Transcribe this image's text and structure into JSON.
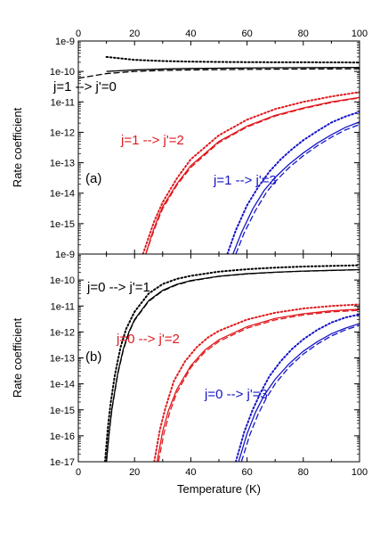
{
  "chart_data": [
    {
      "type": "line",
      "panel_label": "(a)",
      "xlabel": "",
      "ylabel": "Rate coefficient",
      "xlim": [
        0,
        100
      ],
      "ylim_log10": [
        -16,
        -9
      ],
      "x_ticks": [
        "0",
        "20",
        "40",
        "60",
        "80",
        "100"
      ],
      "x_ticks_top": [
        "0",
        "20",
        "40",
        "60",
        "80",
        "100"
      ],
      "y_ticks": [
        "1e-9",
        "1e-10",
        "1e-11",
        "1e-12",
        "1e-13",
        "1e-14",
        "1e-15"
      ],
      "log_scale": "y",
      "grid": false,
      "colors": {
        "black": "#000000",
        "red": "#e0191e",
        "blue": "#1616c8"
      },
      "annotations": [
        {
          "text": "j=1 --> j'=0",
          "color": "#000000"
        },
        {
          "text": "j=1 --> j'=2",
          "color": "#e0191e"
        },
        {
          "text": "j=1 --> j'=3",
          "color": "#1616c8"
        }
      ],
      "series": [
        {
          "transition": "j=1 --> j'=0",
          "color": "#000000",
          "style": "solid",
          "x": [
            10,
            20,
            30,
            40,
            50,
            60,
            70,
            80,
            90,
            100
          ],
          "y": [
            1e-10,
            1.12e-10,
            1.2e-10,
            1.25e-10,
            1.28e-10,
            1.3e-10,
            1.32e-10,
            1.33e-10,
            1.34e-10,
            1.35e-10
          ]
        },
        {
          "transition": "j=1 --> j'=0",
          "color": "#000000",
          "style": "dashed",
          "x": [
            0,
            10,
            20,
            30,
            40,
            50,
            60,
            70,
            80,
            90,
            100
          ],
          "y": [
            6e-11,
            8.5e-11,
            1e-10,
            1.08e-10,
            1.12e-10,
            1.15e-10,
            1.17e-10,
            1.19e-10,
            1.2e-10,
            1.21e-10,
            1.22e-10
          ]
        },
        {
          "transition": "j=1 --> j'=0",
          "color": "#000000",
          "style": "dotted",
          "x": [
            10,
            20,
            30,
            40,
            50,
            60,
            70,
            80,
            90,
            100
          ],
          "y": [
            3e-10,
            2.4e-10,
            2.2e-10,
            2.1e-10,
            2.05e-10,
            2.02e-10,
            2e-10,
            2e-10,
            1.98e-10,
            1.97e-10
          ]
        },
        {
          "transition": "j=1 --> j'=2",
          "color": "#e0191e",
          "style": "solid",
          "x": [
            24,
            26,
            28,
            30,
            35,
            40,
            50,
            60,
            70,
            80,
            90,
            100
          ],
          "y": [
            1e-16,
            4e-16,
            1.3e-15,
            3.6e-15,
            2e-14,
            8e-14,
            5e-13,
            1.6e-12,
            3.6e-12,
            6.3e-12,
            1e-11,
            1.4e-11
          ]
        },
        {
          "transition": "j=1 --> j'=2",
          "color": "#e0191e",
          "style": "dashed",
          "x": [
            24,
            26,
            28,
            30,
            35,
            40,
            50,
            60,
            70,
            80,
            90,
            100
          ],
          "y": [
            1e-16,
            3.5e-16,
            1.1e-15,
            3.1e-15,
            1.8e-14,
            7e-14,
            4.6e-13,
            1.5e-12,
            3.4e-12,
            6e-12,
            9.5e-12,
            1.35e-11
          ]
        },
        {
          "transition": "j=1 --> j'=2",
          "color": "#e0191e",
          "style": "dotted",
          "x": [
            23,
            25,
            27,
            30,
            35,
            40,
            50,
            60,
            70,
            80,
            90,
            100
          ],
          "y": [
            1e-16,
            3.5e-16,
            1.2e-15,
            5e-15,
            3e-14,
            1.3e-13,
            8e-13,
            2.6e-12,
            5.8e-12,
            1e-11,
            1.5e-11,
            2.1e-11
          ]
        },
        {
          "transition": "j=1 --> j'=3",
          "color": "#1616c8",
          "style": "solid",
          "x": [
            55,
            58,
            62,
            66,
            70,
            75,
            80,
            85,
            90,
            95,
            100
          ],
          "y": [
            1e-16,
            5e-16,
            3e-15,
            1.2e-14,
            3.3e-14,
            9e-14,
            2.1e-13,
            4.4e-13,
            8.3e-13,
            1.45e-12,
            2.2e-12
          ]
        },
        {
          "transition": "j=1 --> j'=3",
          "color": "#1616c8",
          "style": "dashed",
          "x": [
            56,
            59,
            63,
            67,
            70,
            75,
            80,
            85,
            90,
            95,
            100
          ],
          "y": [
            1e-16,
            5e-16,
            2.7e-15,
            1.1e-14,
            2.4e-14,
            7e-14,
            1.7e-13,
            3.6e-13,
            6.9e-13,
            1.2e-12,
            1.8e-12
          ]
        },
        {
          "transition": "j=1 --> j'=3",
          "color": "#1616c8",
          "style": "dotted",
          "x": [
            53,
            56,
            60,
            64,
            68,
            72,
            76,
            80,
            85,
            90,
            95,
            100
          ],
          "y": [
            1e-16,
            6e-16,
            4e-15,
            1.6e-14,
            5.2e-14,
            1.3e-13,
            2.8e-13,
            5.5e-13,
            1.1e-12,
            2.1e-12,
            3.3e-12,
            4.7e-12
          ]
        }
      ]
    },
    {
      "type": "line",
      "panel_label": "(b)",
      "xlabel": "Temperature (K)",
      "ylabel": "Rate coefficient",
      "xlim": [
        0,
        100
      ],
      "ylim_log10": [
        -17,
        -9
      ],
      "x_ticks": [
        "0",
        "20",
        "40",
        "60",
        "80",
        "100"
      ],
      "y_ticks": [
        "1e-9",
        "1e-10",
        "1e-11",
        "1e-12",
        "1e-13",
        "1e-14",
        "1e-15",
        "1e-16",
        "1e-17"
      ],
      "log_scale": "y",
      "grid": false,
      "colors": {
        "black": "#000000",
        "red": "#e0191e",
        "blue": "#1616c8"
      },
      "annotations": [
        {
          "text": "j=0 --> j'=1",
          "color": "#000000"
        },
        {
          "text": "j=0 --> j'=2",
          "color": "#e0191e"
        },
        {
          "text": "j=0 --> j'=3",
          "color": "#1616c8"
        }
      ],
      "series": [
        {
          "transition": "j=0 --> j'=1",
          "color": "#000000",
          "style": "solid",
          "x": [
            10,
            11,
            12,
            14,
            16,
            18,
            20,
            25,
            30,
            35,
            40,
            50,
            60,
            70,
            80,
            90,
            100
          ],
          "y": [
            1e-17,
            1.5e-16,
            1.2e-15,
            2.5e-14,
            2.2e-13,
            1e-12,
            3e-12,
            1.6e-11,
            4e-11,
            6.8e-11,
            9.5e-11,
            1.4e-10,
            1.75e-10,
            2e-10,
            2.2e-10,
            2.35e-10,
            2.5e-10
          ]
        },
        {
          "transition": "j=0 --> j'=1",
          "color": "#000000",
          "style": "dashed",
          "x": [
            10,
            11,
            12,
            14,
            16,
            18,
            20,
            25,
            30,
            35,
            40,
            50,
            60,
            70,
            80,
            90,
            100
          ],
          "y": [
            1e-17,
            1.4e-16,
            1.1e-15,
            2.3e-14,
            2e-13,
            9.5e-13,
            2.8e-12,
            1.5e-11,
            3.8e-11,
            6.5e-11,
            9.2e-11,
            1.38e-10,
            1.72e-10,
            1.98e-10,
            2.18e-10,
            2.33e-10,
            2.48e-10
          ]
        },
        {
          "transition": "j=0 --> j'=1",
          "color": "#000000",
          "style": "dotted",
          "x": [
            9.5,
            10.5,
            11.5,
            13,
            15,
            17,
            20,
            25,
            30,
            35,
            40,
            50,
            60,
            70,
            80,
            90,
            100
          ],
          "y": [
            1e-17,
            2e-16,
            1.8e-15,
            2.2e-14,
            2.5e-13,
            1.3e-12,
            6e-12,
            3e-11,
            7e-11,
            1.1e-10,
            1.45e-10,
            2.1e-10,
            2.6e-10,
            3e-10,
            3.3e-10,
            3.5e-10,
            3.7e-10
          ]
        },
        {
          "transition": "j=0 --> j'=2",
          "color": "#e0191e",
          "style": "solid",
          "x": [
            28,
            30,
            32,
            35,
            40,
            45,
            50,
            60,
            70,
            80,
            90,
            100
          ],
          "y": [
            1e-17,
            1.5e-16,
            9e-16,
            6e-15,
            5e-14,
            2e-13,
            5e-13,
            1.6e-12,
            3.3e-12,
            5e-12,
            6.5e-12,
            7.5e-12
          ]
        },
        {
          "transition": "j=0 --> j'=2",
          "color": "#e0191e",
          "style": "dashed",
          "x": [
            28.5,
            30.5,
            32.5,
            35,
            40,
            45,
            50,
            60,
            70,
            80,
            90,
            100
          ],
          "y": [
            1e-17,
            1.3e-16,
            8e-16,
            4.5e-15,
            4.2e-14,
            1.7e-13,
            4.3e-13,
            1.4e-12,
            2.9e-12,
            4.5e-12,
            5.9e-12,
            6.8e-12
          ]
        },
        {
          "transition": "j=0 --> j'=2",
          "color": "#e0191e",
          "style": "dotted",
          "x": [
            27,
            29,
            31,
            34,
            38,
            42,
            46,
            50,
            60,
            70,
            80,
            90,
            100
          ],
          "y": [
            1e-17,
            1.7e-16,
            1.2e-15,
            1.3e-14,
            7.5e-14,
            2.5e-13,
            6e-13,
            1.1e-12,
            3e-12,
            5.5e-12,
            8e-12,
            1e-11,
            1.15e-11
          ]
        },
        {
          "transition": "j=0 --> j'=3",
          "color": "#1616c8",
          "style": "solid",
          "x": [
            57,
            60,
            63,
            66,
            70,
            75,
            80,
            85,
            90,
            95,
            100
          ],
          "y": [
            1e-17,
            1.2e-16,
            8e-16,
            3.5e-15,
            1.5e-14,
            6e-14,
            1.8e-13,
            4.2e-13,
            8.5e-13,
            1.4e-12,
            2.1e-12
          ]
        },
        {
          "transition": "j=0 --> j'=3",
          "color": "#1616c8",
          "style": "dashed",
          "x": [
            58,
            61,
            64,
            67,
            70,
            75,
            80,
            85,
            90,
            95,
            100
          ],
          "y": [
            1e-17,
            1.1e-16,
            7e-16,
            3e-15,
            1e-14,
            4.5e-14,
            1.4e-13,
            3.4e-13,
            7e-13,
            1.2e-12,
            1.8e-12
          ]
        },
        {
          "transition": "j=0 --> j'=3",
          "color": "#1616c8",
          "style": "dotted",
          "x": [
            56,
            59,
            62,
            65,
            68,
            72,
            76,
            80,
            85,
            90,
            95,
            100
          ],
          "y": [
            1e-17,
            1.4e-16,
            1e-15,
            5e-15,
            2e-14,
            7.5e-14,
            2.2e-13,
            5.2e-13,
            1.2e-12,
            2.3e-12,
            3.6e-12,
            4.7e-12
          ]
        }
      ]
    }
  ]
}
